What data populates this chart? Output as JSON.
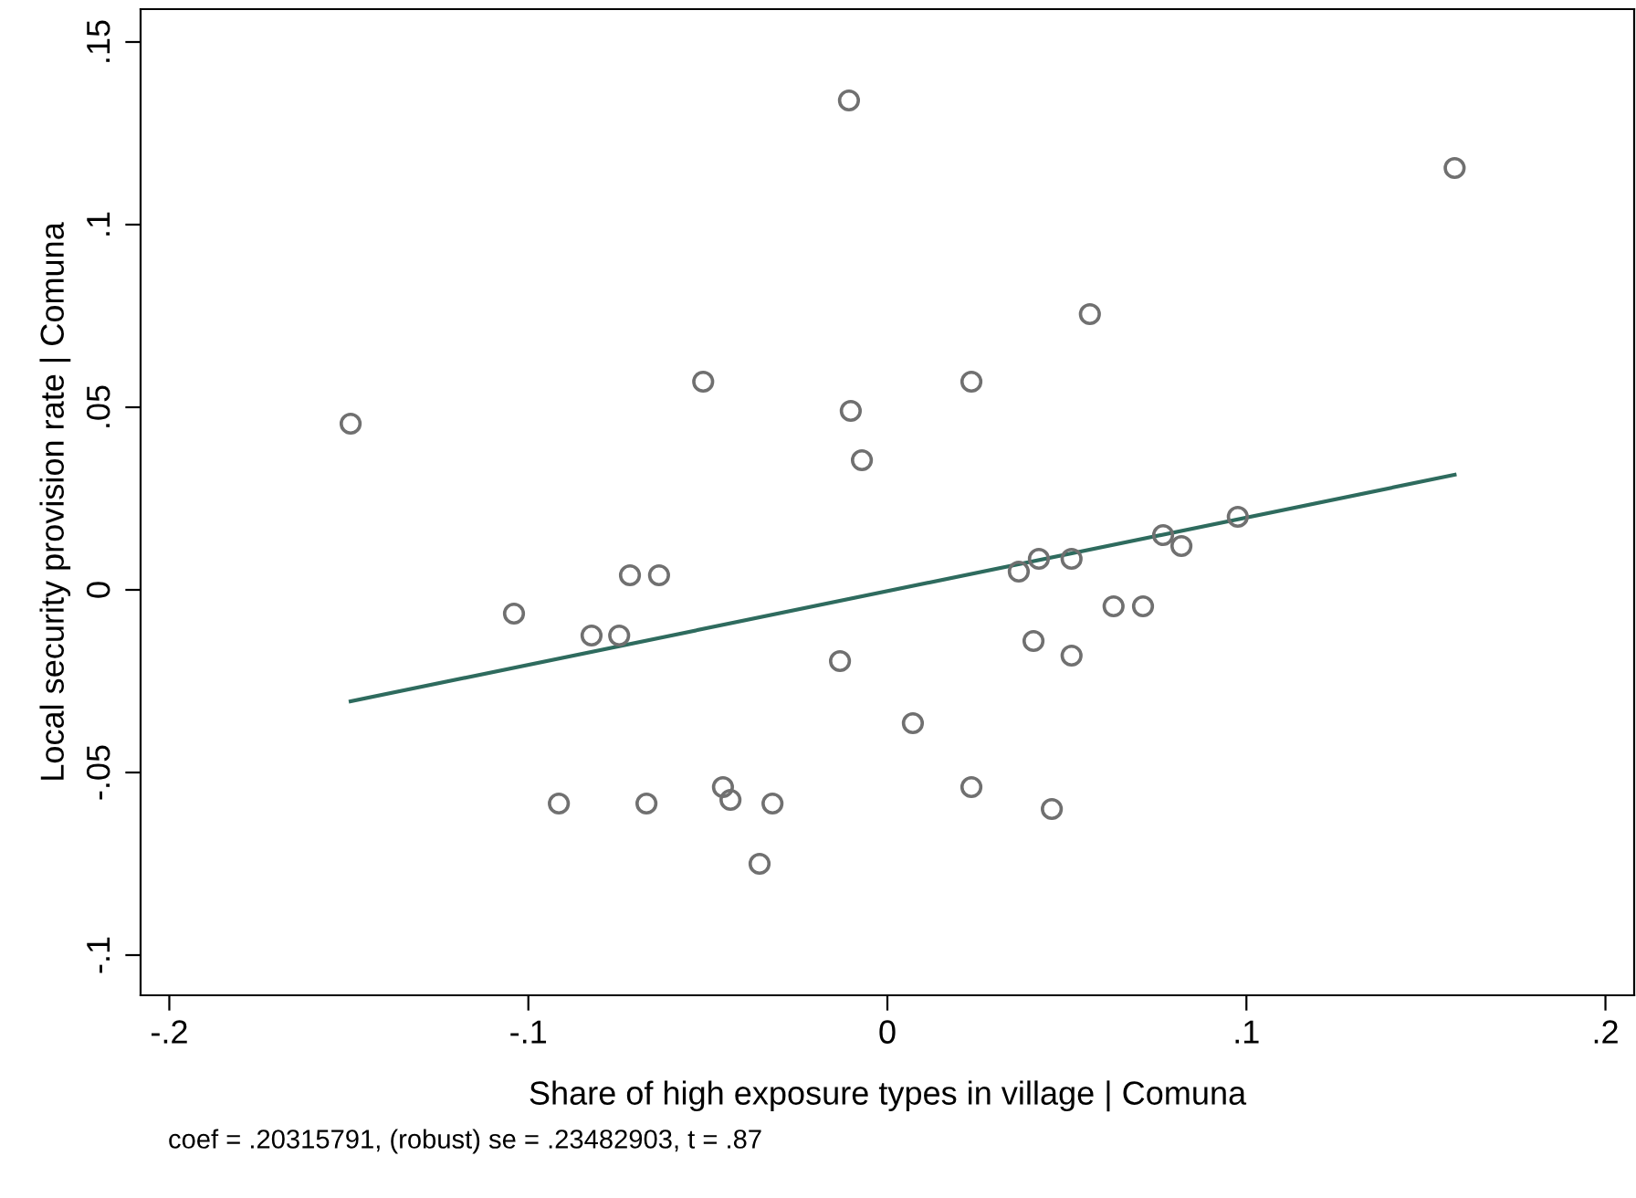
{
  "chart_data": {
    "type": "scatter",
    "xlabel": "Share of high exposure types in village | Comuna",
    "ylabel": "Local security provision rate | Comuna",
    "annotations": [
      "coef = .20315791, (robust) se = .23482903, t = .87"
    ],
    "xlim": [
      -0.208,
      0.208
    ],
    "ylim": [
      -0.111,
      0.159
    ],
    "xticks": [
      {
        "value": -0.2,
        "label": "-.2"
      },
      {
        "value": -0.1,
        "label": "-.1"
      },
      0,
      {
        "value": 0.1,
        "label": ".1"
      },
      {
        "value": 0.2,
        "label": ".2"
      }
    ],
    "yticks": [
      {
        "value": -0.1,
        "label": "-.1"
      },
      {
        "value": -0.05,
        "label": "-.05"
      },
      0,
      {
        "value": 0.05,
        "label": ".05"
      },
      {
        "value": 0.1,
        "label": ".1"
      },
      {
        "value": 0.15,
        "label": ".15"
      }
    ],
    "grid": false,
    "legend": false,
    "series": [
      {
        "color": "#707070",
        "marker": "circle",
        "x": [
          -0.1495,
          -0.104,
          -0.0915,
          -0.0824,
          -0.0747,
          -0.0717,
          -0.0636,
          -0.0671,
          -0.0513,
          -0.0458,
          -0.0437,
          -0.0356,
          -0.032,
          -0.0132,
          -0.0107,
          -0.0102,
          -0.0071,
          0.0071,
          0.0234,
          0.0234,
          0.0366,
          0.0422,
          0.0513,
          0.0407,
          0.0513,
          0.0458,
          0.0564,
          0.063,
          0.0712,
          0.0768,
          0.0819,
          0.0976,
          0.158
        ],
        "values": [
          0.0455,
          -0.0065,
          -0.0585,
          -0.0125,
          -0.0125,
          0.004,
          0.004,
          -0.0585,
          0.057,
          -0.054,
          -0.0575,
          -0.075,
          -0.0585,
          -0.0195,
          0.134,
          0.049,
          0.0355,
          -0.0365,
          0.057,
          -0.054,
          0.005,
          0.0085,
          0.0085,
          -0.014,
          -0.018,
          -0.06,
          0.0755,
          -0.0045,
          -0.0045,
          0.015,
          0.012,
          0.02,
          0.1155
        ]
      },
      {
        "type": "line",
        "marker": "none",
        "color": "#2e6b5e",
        "x": [
          -0.1495,
          0.158
        ],
        "values": [
          -0.0305,
          0.0315
        ]
      }
    ]
  }
}
